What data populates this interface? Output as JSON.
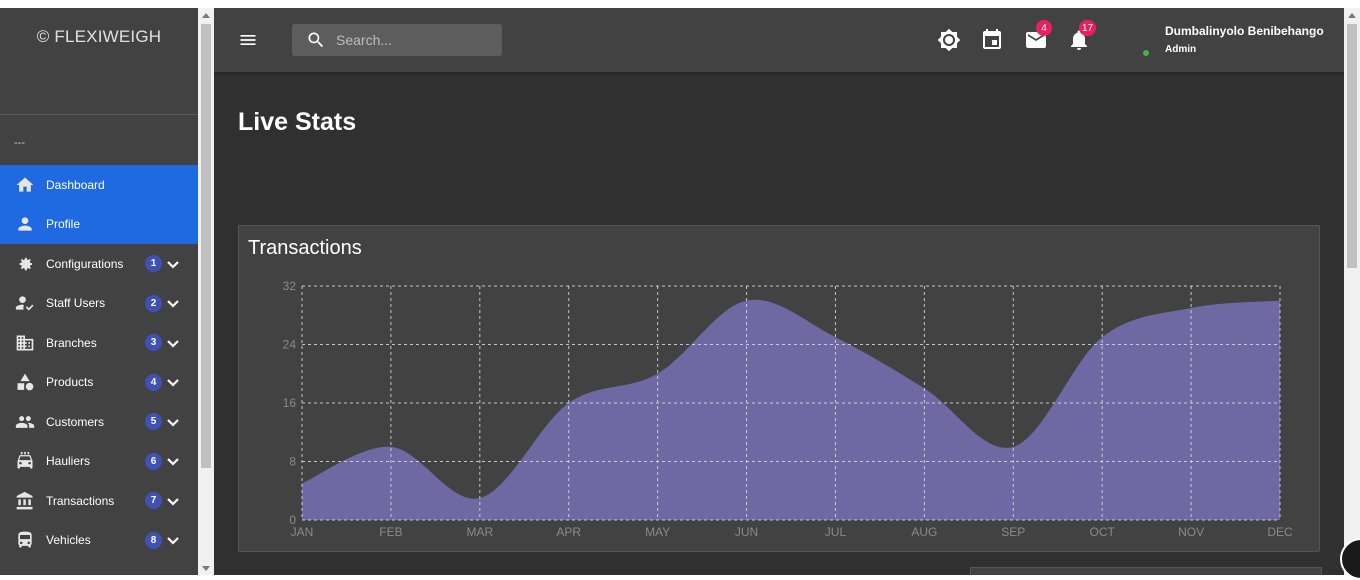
{
  "brand": "© FLEXIWEIGH",
  "sidebar": {
    "section_label": "---",
    "items": [
      {
        "label": "Dashboard",
        "icon": "home-icon",
        "active": true
      },
      {
        "label": "Profile",
        "icon": "person-icon",
        "active": true
      },
      {
        "label": "Configurations",
        "icon": "gear-icon",
        "count": "1"
      },
      {
        "label": "Staff Users",
        "icon": "user-check-icon",
        "count": "2"
      },
      {
        "label": "Branches",
        "icon": "building-icon",
        "count": "3"
      },
      {
        "label": "Products",
        "icon": "shapes-icon",
        "count": "4"
      },
      {
        "label": "Customers",
        "icon": "people-icon",
        "count": "5"
      },
      {
        "label": "Hauliers",
        "icon": "truck-icon",
        "count": "6"
      },
      {
        "label": "Transactions",
        "icon": "bank-icon",
        "count": "7"
      },
      {
        "label": "Vehicles",
        "icon": "bus-icon",
        "count": "8"
      }
    ]
  },
  "topbar": {
    "search_placeholder": "Search...",
    "mail_count": "4",
    "notification_count": "17",
    "user_name": "Dumbalinyolo Benibehango",
    "user_role": "Admin"
  },
  "page": {
    "title": "Live Stats"
  },
  "card": {
    "title": "Transactions"
  },
  "chart_data": {
    "type": "area",
    "categories": [
      "JAN",
      "FEB",
      "MAR",
      "APR",
      "MAY",
      "JUN",
      "JUL",
      "AUG",
      "SEP",
      "OCT",
      "NOV",
      "DEC"
    ],
    "values": [
      5,
      10,
      3,
      16,
      20,
      30,
      25,
      18,
      10,
      25,
      29,
      30
    ],
    "ylim": [
      0,
      32
    ],
    "yticks": [
      0,
      8,
      16,
      24,
      32
    ],
    "grid": true,
    "fill_color": "#6e69a3",
    "grid_color": "#dddddd"
  }
}
